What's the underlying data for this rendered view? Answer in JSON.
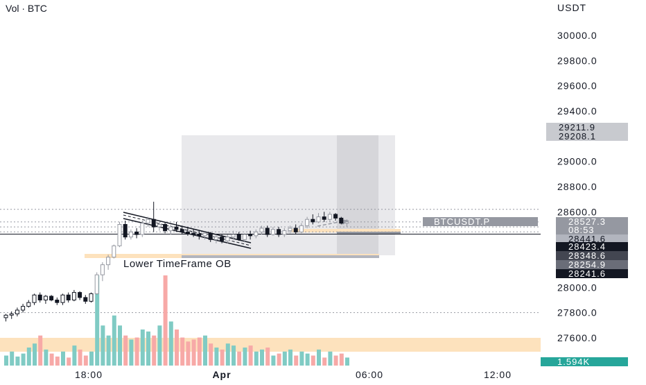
{
  "header": {
    "indicator": "Vol · BTC"
  },
  "axis": {
    "unit": "USDT"
  },
  "annotation": {
    "ob_label": "Lower TimeFrame OB"
  },
  "chart_data": {
    "type": "candlestick",
    "symbol": "BTCUSDT.P",
    "y_ticks": [
      "30000.0",
      "29800.0",
      "29600.0",
      "29400.0",
      "29000.0",
      "28800.0",
      "28600.0",
      "28000.0",
      "27800.0",
      "27600.0"
    ],
    "x_ticks": [
      "18:00",
      "Apr",
      "06:00",
      "12:00"
    ],
    "price_tags": [
      {
        "text": "29211.9",
        "bg": "#c8cacf",
        "fg": "#131722"
      },
      {
        "text": "29208.1",
        "bg": "#c8cacf",
        "fg": "#131722"
      },
      {
        "text": "BTCUSDT.P",
        "bg": "#9598a1",
        "fg": "#ffffff"
      },
      {
        "text": "28527.3",
        "bg": "#9598a1",
        "fg": "#ffffff"
      },
      {
        "text": "08:53",
        "bg": "#9598a1",
        "fg": "#ffffff"
      },
      {
        "text": "28441.6",
        "bg": "#b2b5be",
        "fg": "#131722"
      },
      {
        "text": "28423.4",
        "bg": "#131722",
        "fg": "#ffffff"
      },
      {
        "text": "28348.6",
        "bg": "#434651",
        "fg": "#ffffff"
      },
      {
        "text": "28254.9",
        "bg": "#6a6d78",
        "fg": "#ffffff"
      },
      {
        "text": "28241.6",
        "bg": "#131722",
        "fg": "#ffffff"
      },
      {
        "text": "1.594K",
        "bg": "#26a69a",
        "fg": "#ffffff"
      }
    ],
    "candles": [
      [
        27760,
        27790,
        27730,
        27780
      ],
      [
        27780,
        27810,
        27750,
        27790
      ],
      [
        27790,
        27840,
        27770,
        27820
      ],
      [
        27820,
        27870,
        27800,
        27850
      ],
      [
        27850,
        27900,
        27840,
        27880
      ],
      [
        27880,
        27950,
        27860,
        27940
      ],
      [
        27940,
        27960,
        27880,
        27900
      ],
      [
        27900,
        27940,
        27870,
        27930
      ],
      [
        27930,
        27940,
        27890,
        27900
      ],
      [
        27900,
        27920,
        27860,
        27880
      ],
      [
        27880,
        27950,
        27860,
        27940
      ],
      [
        27940,
        27960,
        27880,
        27900
      ],
      [
        27900,
        27980,
        27890,
        27960
      ],
      [
        27960,
        27970,
        27900,
        27920
      ],
      [
        27920,
        27940,
        27870,
        27890
      ],
      [
        27890,
        27960,
        27880,
        27950
      ],
      [
        27950,
        28120,
        27940,
        28100
      ],
      [
        28100,
        28200,
        28050,
        28180
      ],
      [
        28180,
        28260,
        28140,
        28240
      ],
      [
        28240,
        28340,
        28230,
        28330
      ],
      [
        28330,
        28520,
        28320,
        28500
      ],
      [
        28500,
        28530,
        28380,
        28400
      ],
      [
        28400,
        28460,
        28380,
        28440
      ],
      [
        28440,
        28470,
        28390,
        28420
      ],
      [
        28420,
        28530,
        28400,
        28510
      ],
      [
        28510,
        28560,
        28480,
        28540
      ],
      [
        28540,
        28680,
        28440,
        28480
      ],
      [
        28480,
        28520,
        28450,
        28500
      ],
      [
        28500,
        28520,
        28430,
        28450
      ],
      [
        28450,
        28500,
        28420,
        28480
      ],
      [
        28480,
        28520,
        28440,
        28460
      ],
      [
        28460,
        28490,
        28420,
        28440
      ],
      [
        28440,
        28480,
        28410,
        28430
      ],
      [
        28430,
        28460,
        28400,
        28420
      ],
      [
        28420,
        28450,
        28380,
        28410
      ],
      [
        28410,
        28440,
        28380,
        28430
      ],
      [
        28430,
        28440,
        28360,
        28380
      ],
      [
        28380,
        28420,
        28350,
        28400
      ],
      [
        28400,
        28420,
        28350,
        28370
      ],
      [
        28370,
        28420,
        28350,
        28400
      ],
      [
        28400,
        28450,
        28380,
        28420
      ],
      [
        28420,
        28440,
        28370,
        28380
      ],
      [
        28380,
        28430,
        28360,
        28420
      ],
      [
        28420,
        28450,
        28380,
        28410
      ],
      [
        28410,
        28460,
        28390,
        28440
      ],
      [
        28440,
        28490,
        28420,
        28470
      ],
      [
        28470,
        28490,
        28400,
        28420
      ],
      [
        28420,
        28480,
        28410,
        28460
      ],
      [
        28460,
        28480,
        28400,
        28420
      ],
      [
        28420,
        28470,
        28400,
        28450
      ],
      [
        28450,
        28490,
        28430,
        28470
      ],
      [
        28470,
        28500,
        28420,
        28440
      ],
      [
        28440,
        28510,
        28430,
        28490
      ],
      [
        28490,
        28560,
        28470,
        28540
      ],
      [
        28540,
        28580,
        28500,
        28520
      ],
      [
        28520,
        28590,
        28510,
        28560
      ],
      [
        28560,
        28600,
        28520,
        28540
      ],
      [
        28540,
        28600,
        28520,
        28580
      ],
      [
        28580,
        28590,
        28530,
        28550
      ],
      [
        28550,
        28560,
        28500,
        28510
      ],
      [
        28510,
        28540,
        28480,
        28520
      ]
    ],
    "volume_note": "Volume bars, values relative",
    "volumes": [
      10,
      14,
      9,
      12,
      18,
      22,
      30,
      16,
      12,
      9,
      14,
      8,
      20,
      16,
      10,
      14,
      90,
      40,
      30,
      50,
      40,
      30,
      26,
      28,
      36,
      34,
      30,
      40,
      90,
      44,
      36,
      28,
      24,
      26,
      28,
      30,
      22,
      18,
      16,
      22,
      20,
      14,
      18,
      20,
      14,
      16,
      18,
      10,
      12,
      14,
      16,
      10,
      14,
      12,
      10,
      16,
      8,
      14,
      10,
      12,
      8
    ]
  }
}
